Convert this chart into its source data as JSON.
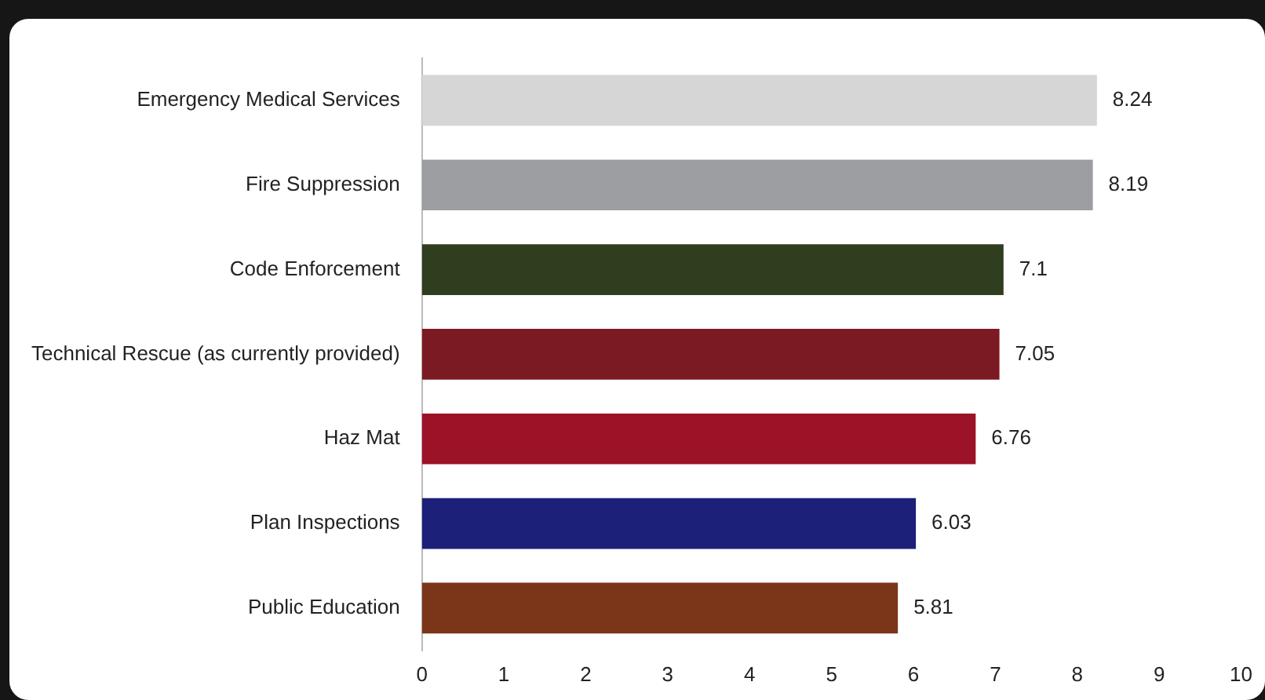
{
  "chart_data": {
    "type": "bar",
    "orientation": "horizontal",
    "categories": [
      "Emergency Medical Services",
      "Fire Suppression",
      "Code Enforcement",
      "Technical Rescue (as currently provided)",
      "Haz Mat",
      "Plan Inspections",
      "Public Education"
    ],
    "values": [
      8.24,
      8.19,
      7.1,
      7.05,
      6.76,
      6.03,
      5.81
    ],
    "colors": [
      "#d6d6d6",
      "#9c9ea2",
      "#2f3e1f",
      "#7c1a24",
      "#9c1226",
      "#1d2078",
      "#7b3519"
    ],
    "xlim": [
      0,
      10
    ],
    "xticks": [
      0,
      1,
      2,
      3,
      4,
      5,
      6,
      7,
      8,
      9,
      10
    ],
    "grid": false,
    "legend": false,
    "data_labels": true
  }
}
